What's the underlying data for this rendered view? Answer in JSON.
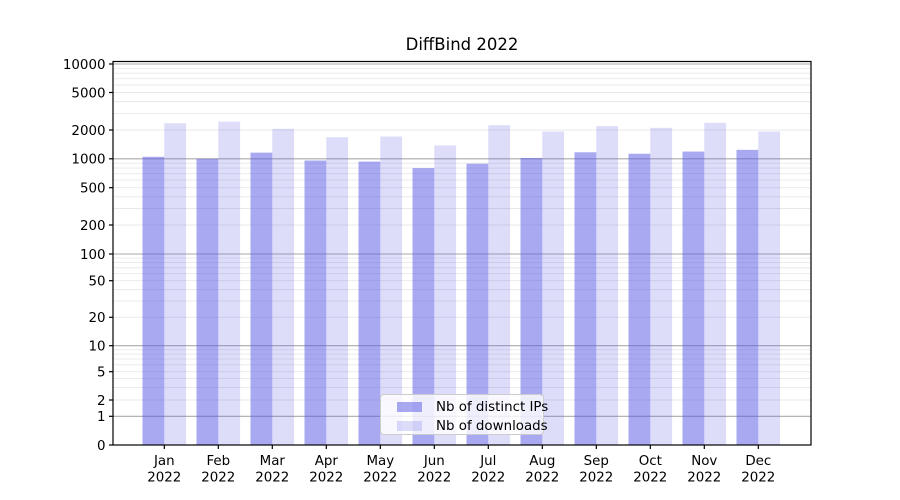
{
  "figure_title": "DiffBind 2022",
  "chart_data": {
    "type": "bar",
    "title": "DiffBind 2022",
    "categories": [
      "Jan 2022",
      "Feb 2022",
      "Mar 2022",
      "Apr 2022",
      "May 2022",
      "Jun 2022",
      "Jul 2022",
      "Aug 2022",
      "Sep 2022",
      "Oct 2022",
      "Nov 2022",
      "Dec 2022"
    ],
    "series": [
      {
        "name": "Nb of distinct IPs",
        "color": "rgba(84,84,228,0.5)",
        "values": [
          1050,
          1000,
          1160,
          960,
          935,
          800,
          890,
          1020,
          1170,
          1130,
          1190,
          1240
        ]
      },
      {
        "name": "Nb of downloads",
        "color": "rgba(84,84,228,0.2)",
        "values": [
          2360,
          2450,
          2060,
          1680,
          1710,
          1380,
          2250,
          1930,
          2200,
          2110,
          2380,
          1930
        ]
      }
    ],
    "xlabel": "",
    "ylabel": "",
    "yscale": "symlog",
    "ylim": [
      0,
      10000
    ],
    "y_ticks": [
      0,
      1,
      2,
      5,
      10,
      20,
      50,
      100,
      200,
      500,
      1000,
      2000,
      5000,
      10000
    ],
    "y_tick_labels": [
      "0",
      "1",
      "2",
      "5",
      "10",
      "20",
      "50",
      "100",
      "200",
      "500",
      "1000",
      "2000",
      "5000",
      "10000"
    ],
    "grid": "both",
    "legend_position": "lower center",
    "legend_entries": [
      "Nb of distinct IPs",
      "Nb of downloads"
    ]
  },
  "colors": {
    "background": "#ffffff",
    "axis": "#000000",
    "tick_label": "#000000",
    "major_grid": "#aaaaaa",
    "minor_grid": "#e8e8e8",
    "legend_border": "#cccccc"
  }
}
